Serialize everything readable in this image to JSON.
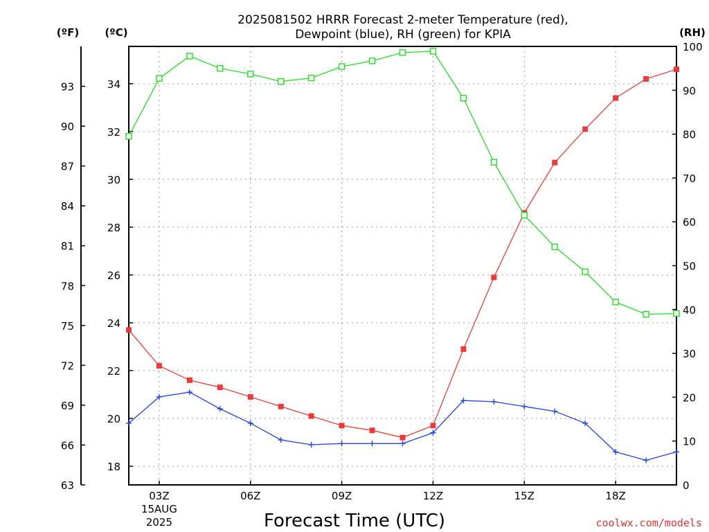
{
  "chart_data": {
    "type": "line",
    "title_lines": [
      "2025081502 HRRR Forecast 2-meter Temperature (red),",
      "Dewpoint (blue), RH (green) for KPIA"
    ],
    "xlabel": "Forecast Time (UTC)",
    "credit": "coolwx.com/models",
    "x_hours": [
      2,
      3,
      4,
      5,
      6,
      7,
      8,
      9,
      10,
      11,
      12,
      13,
      14,
      15,
      16,
      17,
      18,
      19,
      20
    ],
    "x_ticks": [
      {
        "hour": 3,
        "lines": [
          "03Z",
          "15AUG",
          "2025"
        ]
      },
      {
        "hour": 6,
        "lines": [
          "06Z"
        ]
      },
      {
        "hour": 9,
        "lines": [
          "09Z"
        ]
      },
      {
        "hour": 12,
        "lines": [
          "12Z"
        ]
      },
      {
        "hour": 15,
        "lines": [
          "15Z"
        ]
      },
      {
        "hour": 18,
        "lines": [
          "18Z"
        ]
      }
    ],
    "xlim": [
      2,
      20
    ],
    "celsius_axis": {
      "unit_label": "(ºC)",
      "ticks": [
        18,
        20,
        22,
        24,
        26,
        28,
        30,
        32,
        34
      ],
      "ylim": [
        17.22,
        35.56
      ]
    },
    "fahrenheit_axis": {
      "unit_label": "(ºF)",
      "ticks": [
        63,
        66,
        69,
        72,
        75,
        78,
        81,
        84,
        87,
        90,
        93
      ],
      "ylim": [
        63,
        96
      ]
    },
    "rh_axis": {
      "unit_label": "(RH)",
      "ticks": [
        0,
        10,
        20,
        30,
        40,
        50,
        60,
        70,
        80,
        90,
        100
      ],
      "ylim": [
        0,
        100
      ]
    },
    "grid": true,
    "series": [
      {
        "key": "temperature",
        "axis": "celsius",
        "color": "#e83c3c",
        "marker": "filled-square",
        "values": [
          23.7,
          22.2,
          21.6,
          21.3,
          20.9,
          20.5,
          20.1,
          19.7,
          19.5,
          19.2,
          19.7,
          22.9,
          25.9,
          28.6,
          30.7,
          32.1,
          33.4,
          34.2,
          34.6
        ]
      },
      {
        "key": "dewpoint",
        "axis": "celsius",
        "color": "#2040e0",
        "marker": "plus",
        "values": [
          19.8,
          20.9,
          21.1,
          20.4,
          19.8,
          19.1,
          18.9,
          18.95,
          18.95,
          18.95,
          19.4,
          20.75,
          20.7,
          20.5,
          20.3,
          19.8,
          18.6,
          18.25,
          18.6
        ]
      },
      {
        "key": "rh",
        "axis": "rh",
        "color": "#22dd22",
        "marker": "open-square",
        "values": [
          79.5,
          92.7,
          97.8,
          95.0,
          93.7,
          92.0,
          92.8,
          95.4,
          96.7,
          98.6,
          98.9,
          88.2,
          73.6,
          61.5,
          54.3,
          48.6,
          41.7,
          38.9,
          39.1
        ]
      }
    ]
  }
}
